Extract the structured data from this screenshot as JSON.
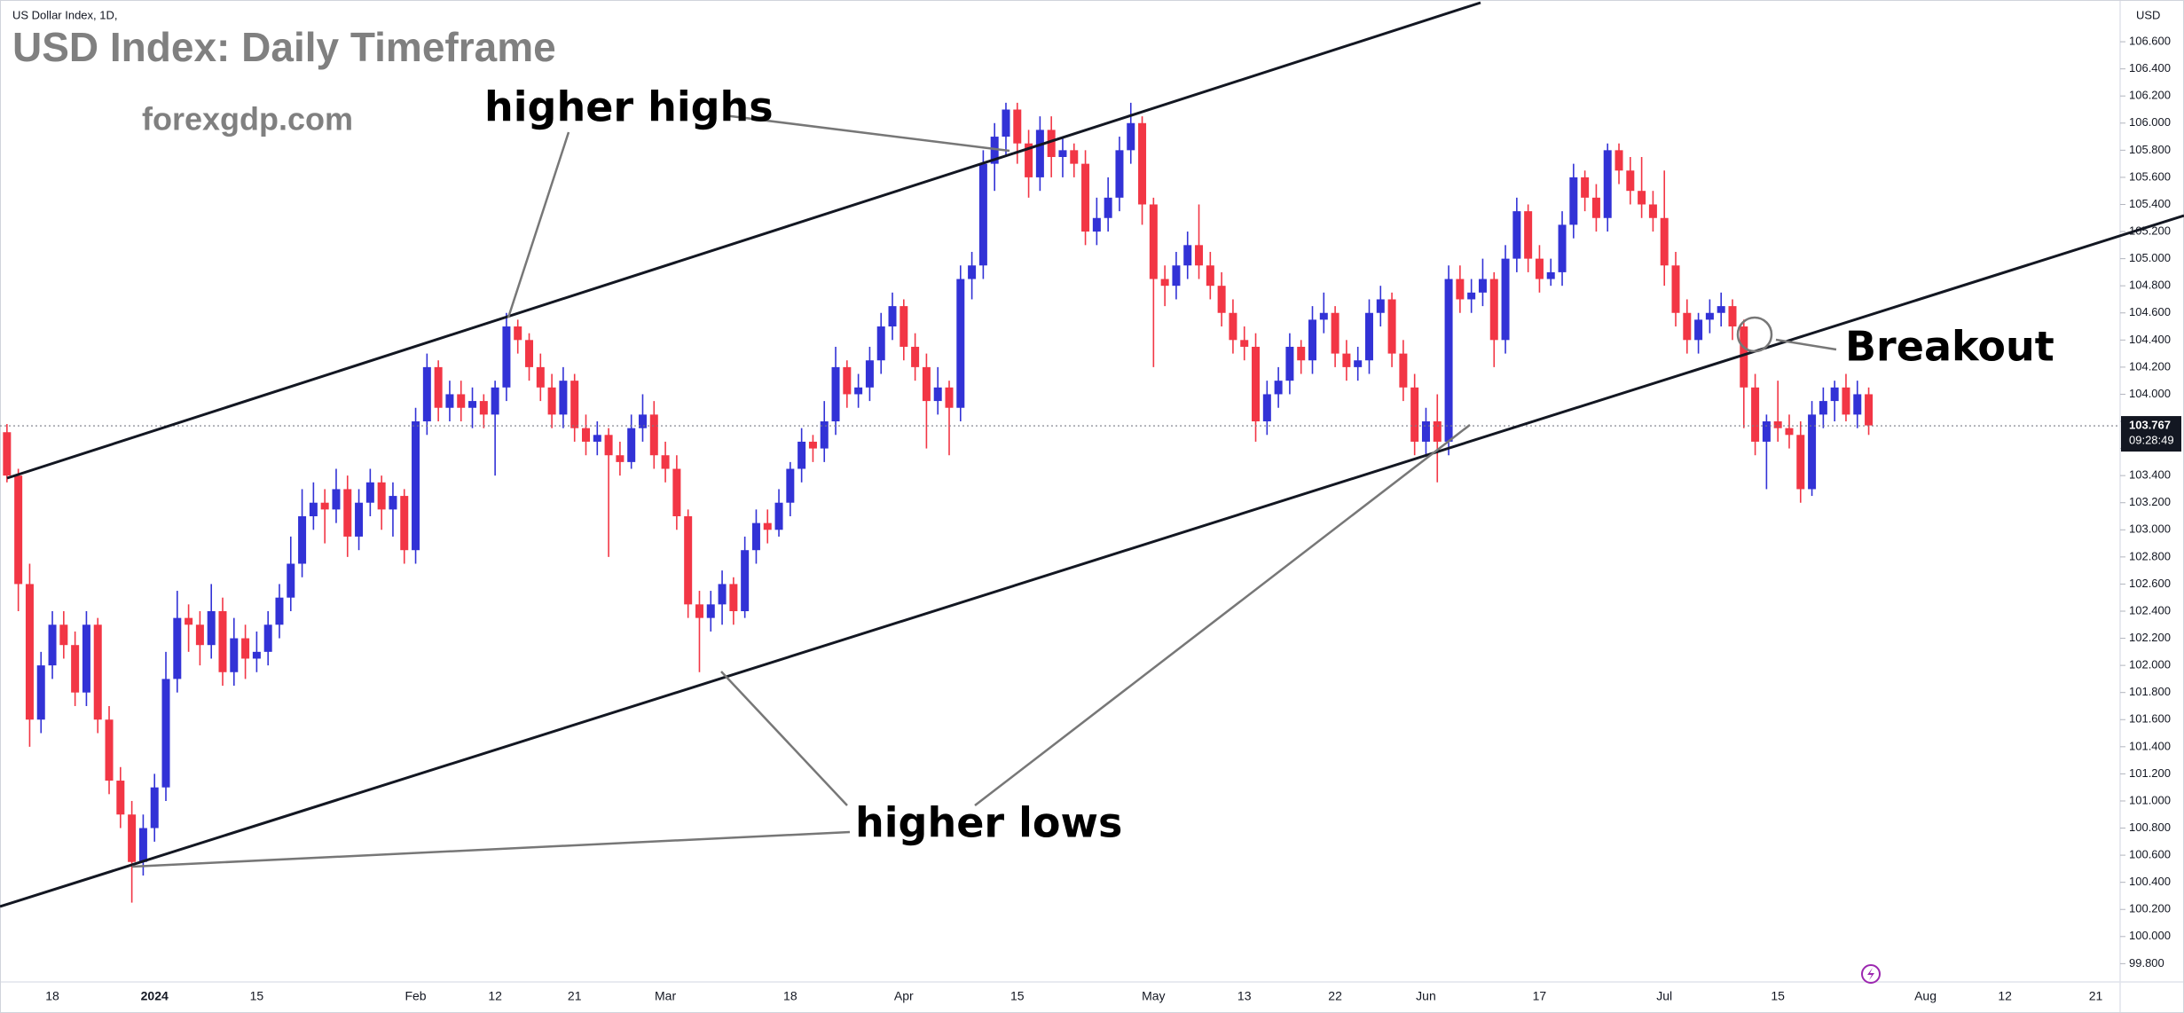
{
  "chart_data": {
    "type": "candlestick",
    "symbol": "US Dollar Index, 1D,",
    "currency": "USD",
    "title": "USD Index: Daily Timeframe",
    "subtitle": "forexgdp.com",
    "annotations": {
      "highs": "higher highs",
      "lows": "higher lows",
      "breakout": "Breakout"
    },
    "last_price": 103.767,
    "countdown": "09:28:49",
    "up_color": "#3232d6",
    "down_color": "#f23645",
    "ylim": [
      99.665,
      106.908
    ],
    "yticks": [
      {
        "value": 99.8,
        "label": "99.800"
      },
      {
        "value": 100.0,
        "label": "100.000"
      },
      {
        "value": 100.2,
        "label": "100.200"
      },
      {
        "value": 100.4,
        "label": "100.400"
      },
      {
        "value": 100.6,
        "label": "100.600"
      },
      {
        "value": 100.8,
        "label": "100.800"
      },
      {
        "value": 101.0,
        "label": "101.000"
      },
      {
        "value": 101.2,
        "label": "101.200"
      },
      {
        "value": 101.4,
        "label": "101.400"
      },
      {
        "value": 101.6,
        "label": "101.600"
      },
      {
        "value": 101.8,
        "label": "101.800"
      },
      {
        "value": 102.0,
        "label": "102.000"
      },
      {
        "value": 102.2,
        "label": "102.200"
      },
      {
        "value": 102.4,
        "label": "102.400"
      },
      {
        "value": 102.6,
        "label": "102.600"
      },
      {
        "value": 102.8,
        "label": "102.800"
      },
      {
        "value": 103.0,
        "label": "103.000"
      },
      {
        "value": 103.2,
        "label": "103.200"
      },
      {
        "value": 103.4,
        "label": "103.400"
      },
      {
        "value": 103.6,
        "label": "103.600"
      },
      {
        "value": 103.8,
        "label": "103.800"
      },
      {
        "value": 104.0,
        "label": "104.000"
      },
      {
        "value": 104.2,
        "label": "104.200"
      },
      {
        "value": 104.4,
        "label": "104.400"
      },
      {
        "value": 104.6,
        "label": "104.600"
      },
      {
        "value": 104.8,
        "label": "104.800"
      },
      {
        "value": 105.0,
        "label": "105.000"
      },
      {
        "value": 105.2,
        "label": "105.200"
      },
      {
        "value": 105.4,
        "label": "105.400"
      },
      {
        "value": 105.6,
        "label": "105.600"
      },
      {
        "value": 105.8,
        "label": "105.800"
      },
      {
        "value": 106.0,
        "label": "106.000"
      },
      {
        "value": 106.2,
        "label": "106.200"
      },
      {
        "value": 106.4,
        "label": "106.400"
      },
      {
        "value": 106.6,
        "label": "106.600"
      }
    ],
    "categories": [
      null,
      null,
      null,
      null,
      "18",
      null,
      null,
      null,
      null,
      null,
      null,
      null,
      null,
      "2024",
      null,
      null,
      null,
      null,
      null,
      null,
      null,
      null,
      "15",
      null,
      null,
      null,
      null,
      null,
      null,
      null,
      null,
      null,
      null,
      null,
      null,
      null,
      "Feb",
      null,
      null,
      null,
      null,
      null,
      null,
      "12",
      null,
      null,
      null,
      null,
      null,
      null,
      "21",
      null,
      null,
      null,
      null,
      null,
      null,
      null,
      "Mar",
      null,
      null,
      null,
      null,
      null,
      null,
      null,
      null,
      null,
      null,
      "18",
      null,
      null,
      null,
      null,
      null,
      null,
      null,
      null,
      null,
      "Apr",
      null,
      null,
      null,
      null,
      null,
      null,
      null,
      null,
      null,
      "15",
      null,
      null,
      null,
      null,
      null,
      null,
      null,
      null,
      null,
      null,
      null,
      "May",
      null,
      null,
      null,
      null,
      null,
      null,
      null,
      "13",
      null,
      null,
      null,
      null,
      null,
      null,
      null,
      "22",
      null,
      null,
      null,
      null,
      null,
      null,
      null,
      "Jun",
      null,
      null,
      null,
      null,
      null,
      null,
      null,
      null,
      null,
      "17",
      null,
      null,
      null,
      null,
      null,
      null,
      null,
      null,
      null,
      null,
      "Jul",
      null,
      null,
      null,
      null,
      null,
      null,
      null,
      null,
      null,
      "15",
      null,
      null,
      null,
      null,
      null,
      null,
      null,
      null,
      null,
      null,
      null,
      null,
      "Aug",
      null,
      null,
      null,
      null,
      null,
      null,
      "12",
      null,
      null,
      null,
      null,
      null,
      null,
      null,
      "21"
    ],
    "ohlc": [
      [
        103.72,
        103.78,
        103.35,
        103.4
      ],
      [
        103.4,
        103.45,
        102.4,
        102.6
      ],
      [
        102.6,
        102.75,
        101.4,
        101.6
      ],
      [
        101.6,
        102.1,
        101.5,
        102.0
      ],
      [
        102.0,
        102.4,
        101.9,
        102.3
      ],
      [
        102.3,
        102.4,
        102.05,
        102.15
      ],
      [
        102.15,
        102.25,
        101.7,
        101.8
      ],
      [
        101.8,
        102.4,
        101.7,
        102.3
      ],
      [
        102.3,
        102.35,
        101.5,
        101.6
      ],
      [
        101.6,
        101.7,
        101.05,
        101.15
      ],
      [
        101.15,
        101.25,
        100.8,
        100.9
      ],
      [
        100.9,
        101.0,
        100.25,
        100.55
      ],
      [
        100.55,
        100.9,
        100.45,
        100.8
      ],
      [
        100.8,
        101.2,
        100.7,
        101.1
      ],
      [
        101.1,
        102.1,
        101.0,
        101.9
      ],
      [
        101.9,
        102.55,
        101.8,
        102.35
      ],
      [
        102.35,
        102.45,
        102.1,
        102.3
      ],
      [
        102.3,
        102.4,
        102.0,
        102.15
      ],
      [
        102.15,
        102.6,
        102.05,
        102.4
      ],
      [
        102.4,
        102.5,
        101.85,
        101.95
      ],
      [
        101.95,
        102.35,
        101.85,
        102.2
      ],
      [
        102.2,
        102.3,
        101.9,
        102.05
      ],
      [
        102.05,
        102.25,
        101.95,
        102.1
      ],
      [
        102.1,
        102.4,
        102.0,
        102.3
      ],
      [
        102.3,
        102.6,
        102.2,
        102.5
      ],
      [
        102.5,
        102.95,
        102.4,
        102.75
      ],
      [
        102.75,
        103.3,
        102.65,
        103.1
      ],
      [
        103.1,
        103.35,
        103.0,
        103.2
      ],
      [
        103.2,
        103.3,
        102.9,
        103.15
      ],
      [
        103.15,
        103.45,
        103.05,
        103.3
      ],
      [
        103.3,
        103.4,
        102.8,
        102.95
      ],
      [
        102.95,
        103.3,
        102.85,
        103.2
      ],
      [
        103.2,
        103.45,
        103.1,
        103.35
      ],
      [
        103.35,
        103.4,
        103.0,
        103.15
      ],
      [
        103.15,
        103.35,
        102.95,
        103.25
      ],
      [
        103.25,
        103.3,
        102.75,
        102.85
      ],
      [
        102.85,
        103.9,
        102.75,
        103.8
      ],
      [
        103.8,
        104.3,
        103.7,
        104.2
      ],
      [
        104.2,
        104.25,
        103.8,
        103.9
      ],
      [
        103.9,
        104.1,
        103.8,
        104.0
      ],
      [
        104.0,
        104.1,
        103.8,
        103.9
      ],
      [
        103.9,
        104.05,
        103.75,
        103.95
      ],
      [
        103.95,
        104.0,
        103.75,
        103.85
      ],
      [
        103.85,
        104.1,
        103.4,
        104.05
      ],
      [
        104.05,
        104.6,
        103.95,
        104.5
      ],
      [
        104.5,
        104.55,
        104.3,
        104.4
      ],
      [
        104.4,
        104.45,
        104.1,
        104.2
      ],
      [
        104.2,
        104.3,
        103.95,
        104.05
      ],
      [
        104.05,
        104.15,
        103.75,
        103.85
      ],
      [
        103.85,
        104.2,
        103.75,
        104.1
      ],
      [
        104.1,
        104.15,
        103.65,
        103.75
      ],
      [
        103.75,
        103.85,
        103.55,
        103.65
      ],
      [
        103.65,
        103.8,
        103.55,
        103.7
      ],
      [
        103.7,
        103.75,
        102.8,
        103.55
      ],
      [
        103.55,
        103.65,
        103.4,
        103.5
      ],
      [
        103.5,
        103.85,
        103.45,
        103.75
      ],
      [
        103.75,
        104.0,
        103.65,
        103.85
      ],
      [
        103.85,
        103.95,
        103.45,
        103.55
      ],
      [
        103.55,
        103.65,
        103.35,
        103.45
      ],
      [
        103.45,
        103.55,
        103.0,
        103.1
      ],
      [
        103.1,
        103.15,
        102.35,
        102.45
      ],
      [
        102.45,
        102.55,
        101.95,
        102.35
      ],
      [
        102.35,
        102.55,
        102.25,
        102.45
      ],
      [
        102.45,
        102.7,
        102.3,
        102.6
      ],
      [
        102.6,
        102.65,
        102.3,
        102.4
      ],
      [
        102.4,
        102.95,
        102.35,
        102.85
      ],
      [
        102.85,
        103.15,
        102.75,
        103.05
      ],
      [
        103.05,
        103.15,
        102.9,
        103.0
      ],
      [
        103.0,
        103.3,
        102.95,
        103.2
      ],
      [
        103.2,
        103.5,
        103.1,
        103.45
      ],
      [
        103.45,
        103.75,
        103.35,
        103.65
      ],
      [
        103.65,
        103.7,
        103.5,
        103.6
      ],
      [
        103.6,
        103.95,
        103.5,
        103.8
      ],
      [
        103.8,
        104.35,
        103.7,
        104.2
      ],
      [
        104.2,
        104.25,
        103.9,
        104.0
      ],
      [
        104.0,
        104.15,
        103.9,
        104.05
      ],
      [
        104.05,
        104.35,
        103.95,
        104.25
      ],
      [
        104.25,
        104.6,
        104.15,
        104.5
      ],
      [
        104.5,
        104.75,
        104.4,
        104.65
      ],
      [
        104.65,
        104.7,
        104.25,
        104.35
      ],
      [
        104.35,
        104.45,
        104.1,
        104.2
      ],
      [
        104.2,
        104.3,
        103.6,
        103.95
      ],
      [
        103.95,
        104.2,
        103.85,
        104.05
      ],
      [
        104.05,
        104.1,
        103.55,
        103.9
      ],
      [
        103.9,
        104.95,
        103.8,
        104.85
      ],
      [
        104.85,
        105.05,
        104.7,
        104.95
      ],
      [
        104.95,
        105.8,
        104.85,
        105.7
      ],
      [
        105.7,
        106.0,
        105.5,
        105.9
      ],
      [
        105.9,
        106.15,
        105.75,
        106.1
      ],
      [
        106.1,
        106.15,
        105.7,
        105.85
      ],
      [
        105.85,
        105.95,
        105.45,
        105.6
      ],
      [
        105.6,
        106.05,
        105.5,
        105.95
      ],
      [
        105.95,
        106.05,
        105.6,
        105.75
      ],
      [
        105.75,
        105.9,
        105.6,
        105.8
      ],
      [
        105.8,
        105.85,
        105.6,
        105.7
      ],
      [
        105.7,
        105.8,
        105.1,
        105.2
      ],
      [
        105.2,
        105.45,
        105.1,
        105.3
      ],
      [
        105.3,
        105.6,
        105.2,
        105.45
      ],
      [
        105.45,
        105.9,
        105.35,
        105.8
      ],
      [
        105.8,
        106.15,
        105.7,
        106.0
      ],
      [
        106.0,
        106.05,
        105.25,
        105.4
      ],
      [
        105.4,
        105.45,
        104.2,
        104.85
      ],
      [
        104.85,
        104.95,
        104.65,
        104.8
      ],
      [
        104.8,
        105.05,
        104.7,
        104.95
      ],
      [
        104.95,
        105.2,
        104.85,
        105.1
      ],
      [
        105.1,
        105.4,
        104.85,
        104.95
      ],
      [
        104.95,
        105.05,
        104.7,
        104.8
      ],
      [
        104.8,
        104.9,
        104.5,
        104.6
      ],
      [
        104.6,
        104.7,
        104.3,
        104.4
      ],
      [
        104.4,
        104.5,
        104.25,
        104.35
      ],
      [
        104.35,
        104.45,
        103.65,
        103.8
      ],
      [
        103.8,
        104.1,
        103.7,
        104.0
      ],
      [
        104.0,
        104.2,
        103.9,
        104.1
      ],
      [
        104.1,
        104.45,
        104.0,
        104.35
      ],
      [
        104.35,
        104.4,
        104.15,
        104.25
      ],
      [
        104.25,
        104.65,
        104.15,
        104.55
      ],
      [
        104.55,
        104.75,
        104.45,
        104.6
      ],
      [
        104.6,
        104.65,
        104.2,
        104.3
      ],
      [
        104.3,
        104.4,
        104.1,
        104.2
      ],
      [
        104.2,
        104.35,
        104.1,
        104.25
      ],
      [
        104.25,
        104.7,
        104.15,
        104.6
      ],
      [
        104.6,
        104.8,
        104.5,
        104.7
      ],
      [
        104.7,
        104.75,
        104.2,
        104.3
      ],
      [
        104.3,
        104.4,
        103.95,
        104.05
      ],
      [
        104.05,
        104.15,
        103.55,
        103.65
      ],
      [
        103.65,
        103.9,
        103.55,
        103.8
      ],
      [
        103.8,
        104.0,
        103.35,
        103.65
      ],
      [
        103.65,
        104.95,
        103.55,
        104.85
      ],
      [
        104.85,
        104.95,
        104.6,
        104.7
      ],
      [
        104.7,
        104.85,
        104.6,
        104.75
      ],
      [
        104.75,
        105.0,
        104.65,
        104.85
      ],
      [
        104.85,
        104.9,
        104.2,
        104.4
      ],
      [
        104.4,
        105.1,
        104.3,
        105.0
      ],
      [
        105.0,
        105.45,
        104.9,
        105.35
      ],
      [
        105.35,
        105.4,
        104.9,
        105.0
      ],
      [
        105.0,
        105.1,
        104.75,
        104.85
      ],
      [
        104.85,
        105.0,
        104.8,
        104.9
      ],
      [
        104.9,
        105.35,
        104.8,
        105.25
      ],
      [
        105.25,
        105.7,
        105.15,
        105.6
      ],
      [
        105.6,
        105.65,
        105.35,
        105.45
      ],
      [
        105.45,
        105.55,
        105.2,
        105.3
      ],
      [
        105.3,
        105.85,
        105.2,
        105.8
      ],
      [
        105.8,
        105.85,
        105.55,
        105.65
      ],
      [
        105.65,
        105.75,
        105.4,
        105.5
      ],
      [
        105.5,
        105.75,
        105.3,
        105.4
      ],
      [
        105.4,
        105.5,
        105.2,
        105.3
      ],
      [
        105.3,
        105.65,
        104.8,
        104.95
      ],
      [
        104.95,
        105.05,
        104.5,
        104.6
      ],
      [
        104.6,
        104.7,
        104.3,
        104.4
      ],
      [
        104.4,
        104.6,
        104.3,
        104.55
      ],
      [
        104.55,
        104.7,
        104.45,
        104.6
      ],
      [
        104.6,
        104.75,
        104.5,
        104.65
      ],
      [
        104.65,
        104.7,
        104.4,
        104.5
      ],
      [
        104.5,
        104.55,
        103.75,
        104.05
      ],
      [
        104.05,
        104.15,
        103.55,
        103.65
      ],
      [
        103.65,
        103.85,
        103.3,
        103.8
      ],
      [
        103.8,
        104.1,
        103.65,
        103.75
      ],
      [
        103.75,
        103.85,
        103.6,
        103.7
      ],
      [
        103.7,
        103.8,
        103.2,
        103.3
      ],
      [
        103.3,
        103.95,
        103.25,
        103.85
      ],
      [
        103.85,
        104.05,
        103.75,
        103.95
      ],
      [
        103.95,
        104.1,
        103.8,
        104.05
      ],
      [
        104.05,
        104.15,
        103.8,
        103.85
      ],
      [
        103.85,
        104.1,
        103.75,
        104.0
      ],
      [
        104.0,
        104.05,
        103.7,
        103.77
      ],
      null,
      null,
      null,
      null,
      null,
      null,
      null,
      null,
      null,
      null,
      null,
      null,
      null,
      null,
      null,
      null,
      null,
      null,
      null,
      null
    ]
  }
}
